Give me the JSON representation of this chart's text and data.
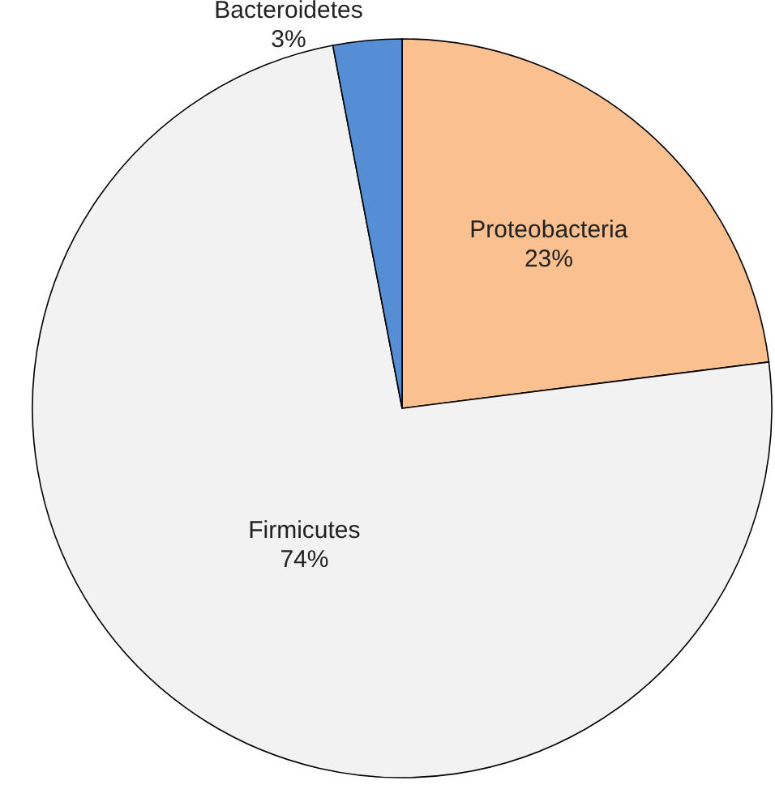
{
  "chart_data": {
    "type": "pie",
    "categories": [
      "Proteobacteria",
      "Firmicutes",
      "Bacteroidetes"
    ],
    "values": [
      23,
      74,
      3
    ],
    "colors": [
      "#fac090",
      "#f2f2f2",
      "#558ed5"
    ],
    "value_labels": [
      "23%",
      "74%",
      "3%"
    ]
  }
}
